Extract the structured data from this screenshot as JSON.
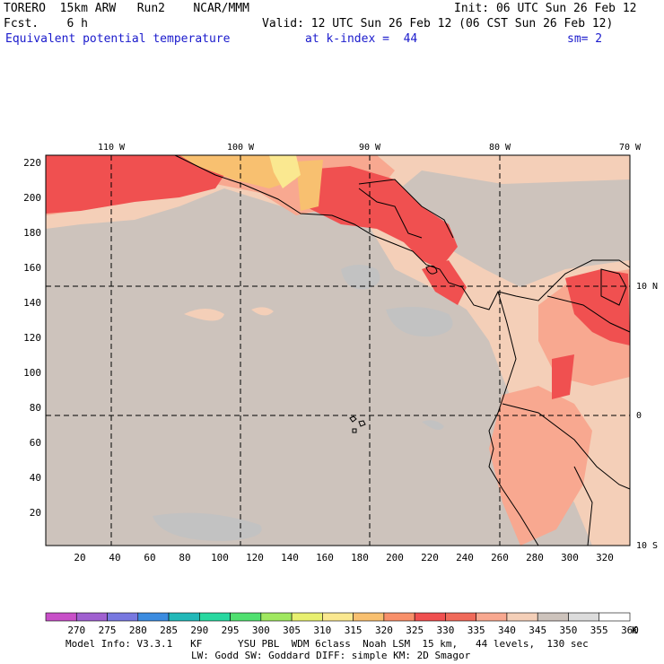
{
  "header": {
    "model": "TORERO  15km ARW   Run2    NCAR/MMM",
    "init": "Init: 06 UTC Sun 26 Feb 12",
    "fcst": "Fcst.    6 h",
    "valid": "Valid: 12 UTC Sun 26 Feb 12 (06 CST Sun 26 Feb 12)",
    "field": "Equivalent potential temperature",
    "kindex": "at k-index =  44",
    "smooth": "sm= 2"
  },
  "map": {
    "lon_labels": [
      "110 W",
      "100 W",
      "90 W",
      "80 W",
      "70 W"
    ],
    "lat_labels_right": [
      "10 N",
      "0",
      "10 S"
    ],
    "y_ticks": [
      "20",
      "40",
      "60",
      "80",
      "100",
      "120",
      "140",
      "160",
      "180",
      "200",
      "220"
    ],
    "x_ticks": [
      "20",
      "40",
      "60",
      "80",
      "100",
      "120",
      "140",
      "160",
      "180",
      "200",
      "220",
      "240",
      "260",
      "280",
      "300",
      "320"
    ],
    "background_color": "#cdc3bc",
    "grid_style": "dashed"
  },
  "colorbar": {
    "levels": [
      "270",
      "275",
      "280",
      "285",
      "290",
      "295",
      "300",
      "305",
      "310",
      "315",
      "320",
      "325",
      "330",
      "335",
      "340",
      "345",
      "350",
      "355",
      "360"
    ],
    "unit": "K",
    "colors": [
      "#c850c8",
      "#a060d0",
      "#7878e0",
      "#3c8ce0",
      "#22b8b8",
      "#28d8a0",
      "#50e070",
      "#a0e860",
      "#e8f070",
      "#fae890",
      "#f8c070",
      "#f8906a",
      "#f05050",
      "#f06a5a",
      "#f8a890",
      "#f4cfb8",
      "#cdc3bc",
      "#dcdcdc",
      "#ffffff"
    ]
  },
  "footer": {
    "line1": "Model Info: V3.3.1   KF      YSU PBL  WDM 6class  Noah LSM  15 km,   44 levels,  130 sec",
    "line2": "LW: Godd SW: Goddard DIFF: simple KM: 2D Smagor"
  }
}
